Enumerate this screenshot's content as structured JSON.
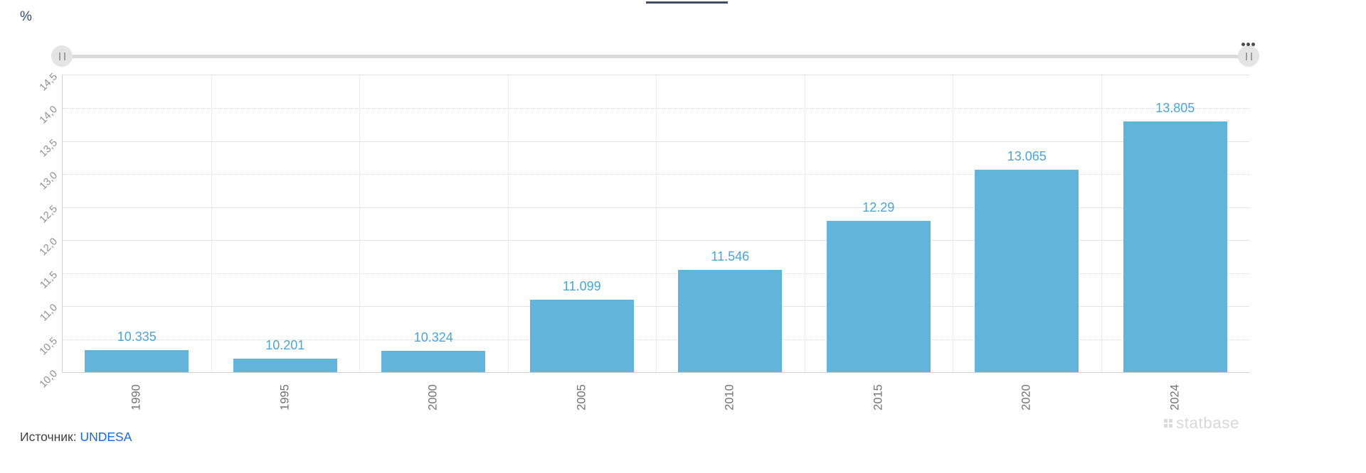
{
  "unit_label": "%",
  "icons": {
    "range_handle_glyph": "drag-handle-icon",
    "more_options_glyph": "more-options-icon"
  },
  "chart_data": {
    "type": "bar",
    "title": "",
    "ylabel": "%",
    "xlabel": "",
    "categories": [
      "1990",
      "1995",
      "2000",
      "2005",
      "2010",
      "2015",
      "2020",
      "2024"
    ],
    "values": [
      10.335,
      10.201,
      10.324,
      11.099,
      11.546,
      12.29,
      13.065,
      13.805
    ],
    "value_labels": [
      "10.335",
      "10.201",
      "10.324",
      "11.099",
      "11.546",
      "12.29",
      "13.065",
      "13.805"
    ],
    "ylim": [
      10.0,
      14.5
    ],
    "ytick_step": 0.5,
    "yticks_top_to_bottom": [
      "14,5",
      "14,0",
      "13,5",
      "13,0",
      "12,5",
      "12,0",
      "11,5",
      "11,0",
      "10,5",
      "10,0"
    ],
    "grid": true,
    "legend": "none",
    "bar_color": "#63b4db",
    "value_label_color": "#4aa5d9"
  },
  "source": {
    "label": "Источник:",
    "link_text": "UNDESA",
    "link_color": "#1569df"
  },
  "watermark": {
    "text": "statbase"
  },
  "colors": {
    "accent_tab": "#3f4c63"
  }
}
